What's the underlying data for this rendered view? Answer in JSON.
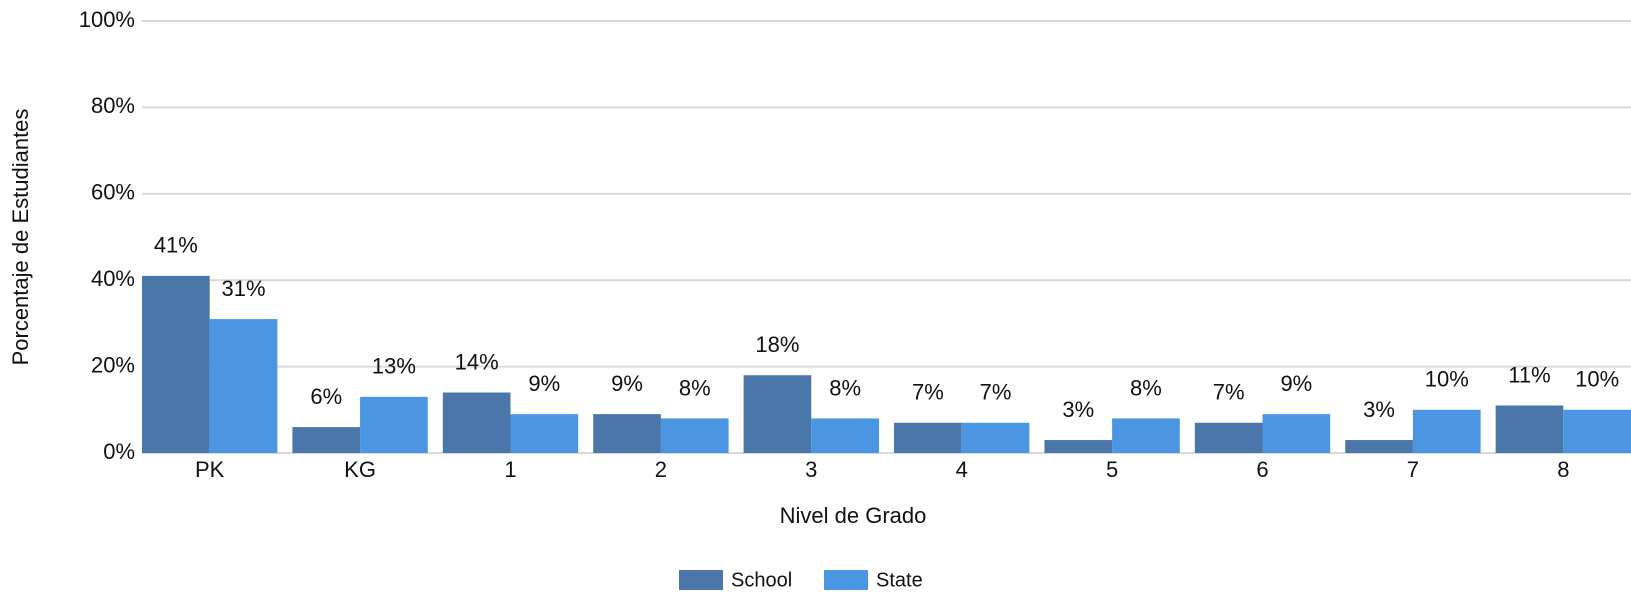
{
  "chart_data": {
    "type": "bar",
    "categories": [
      "PK",
      "KG",
      "1",
      "2",
      "3",
      "4",
      "5",
      "6",
      "7",
      "8"
    ],
    "series": [
      {
        "name": "School",
        "color": "#4a76aa",
        "values": [
          41,
          6,
          14,
          9,
          18,
          7,
          3,
          7,
          3,
          11
        ],
        "value_labels": [
          "41%",
          "6%",
          "14%",
          "9%",
          "18%",
          "7%",
          "3%",
          "7%",
          "3%",
          "11%"
        ]
      },
      {
        "name": "State",
        "color": "#4a96e3",
        "values": [
          31,
          13,
          9,
          8,
          8,
          7,
          8,
          9,
          10,
          10
        ],
        "value_labels": [
          "31%",
          "13%",
          "9%",
          "8%",
          "8%",
          "7%",
          "8%",
          "9%",
          "10%",
          "10%"
        ]
      }
    ],
    "x_label": "Nivel de Grado",
    "y_label": "Porcentaje de Estudiantes",
    "ylim": [
      0,
      100
    ],
    "yticks": [
      {
        "value": 0,
        "label": "0%"
      },
      {
        "value": 20,
        "label": "20%"
      },
      {
        "value": 40,
        "label": "40%"
      },
      {
        "value": 60,
        "label": "60%"
      },
      {
        "value": 80,
        "label": "80%"
      },
      {
        "value": 100,
        "label": "100%"
      }
    ],
    "grid": true,
    "legend": "bottom"
  }
}
